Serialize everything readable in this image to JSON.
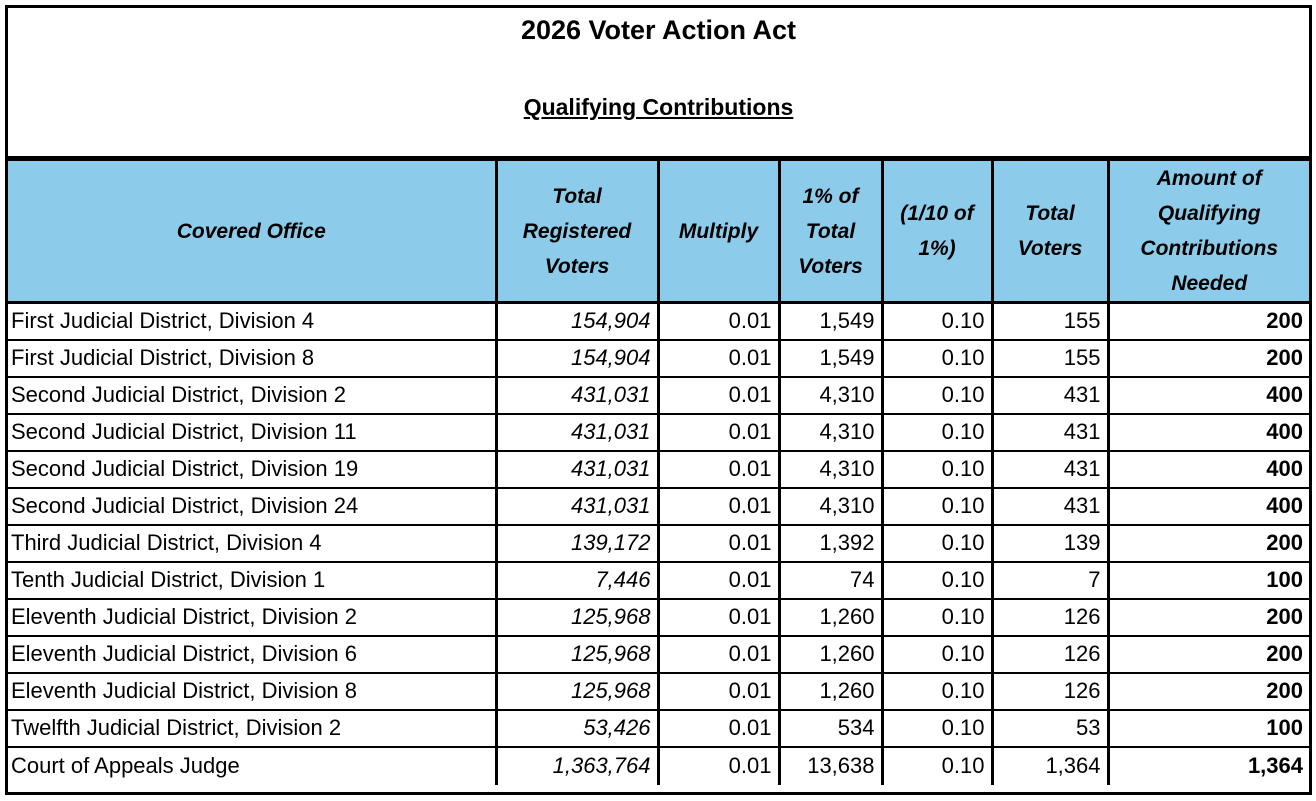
{
  "title": "2026 Voter Action Act",
  "subtitle": "Qualifying Contributions",
  "columns": [
    "Covered Office",
    "Total Registered Voters",
    "Multiply",
    "1% of Total Voters",
    "(1/10 of 1%)",
    "Total Voters",
    "Amount of Qualifying Contributions Needed"
  ],
  "rows": [
    {
      "office": "First Judicial District, Division 4",
      "registered": "154,904",
      "multiply": "0.01",
      "one_percent": "1,549",
      "tenth": "0.10",
      "total": "155",
      "needed": "200"
    },
    {
      "office": "First Judicial District, Division 8",
      "registered": "154,904",
      "multiply": "0.01",
      "one_percent": "1,549",
      "tenth": "0.10",
      "total": "155",
      "needed": "200"
    },
    {
      "office": "Second Judicial District, Division 2",
      "registered": "431,031",
      "multiply": "0.01",
      "one_percent": "4,310",
      "tenth": "0.10",
      "total": "431",
      "needed": "400"
    },
    {
      "office": "Second Judicial District, Division 11",
      "registered": "431,031",
      "multiply": "0.01",
      "one_percent": "4,310",
      "tenth": "0.10",
      "total": "431",
      "needed": "400"
    },
    {
      "office": "Second Judicial District, Division 19",
      "registered": "431,031",
      "multiply": "0.01",
      "one_percent": "4,310",
      "tenth": "0.10",
      "total": "431",
      "needed": "400"
    },
    {
      "office": "Second Judicial District, Division 24",
      "registered": "431,031",
      "multiply": "0.01",
      "one_percent": "4,310",
      "tenth": "0.10",
      "total": "431",
      "needed": "400"
    },
    {
      "office": "Third Judicial District, Division 4",
      "registered": "139,172",
      "multiply": "0.01",
      "one_percent": "1,392",
      "tenth": "0.10",
      "total": "139",
      "needed": "200"
    },
    {
      "office": "Tenth Judicial District, Division 1",
      "registered": "7,446",
      "multiply": "0.01",
      "one_percent": "74",
      "tenth": "0.10",
      "total": "7",
      "needed": "100"
    },
    {
      "office": "Eleventh Judicial District, Division 2",
      "registered": "125,968",
      "multiply": "0.01",
      "one_percent": "1,260",
      "tenth": "0.10",
      "total": "126",
      "needed": "200"
    },
    {
      "office": "Eleventh Judicial District, Division 6",
      "registered": "125,968",
      "multiply": "0.01",
      "one_percent": "1,260",
      "tenth": "0.10",
      "total": "126",
      "needed": "200"
    },
    {
      "office": "Eleventh Judicial District, Division 8",
      "registered": "125,968",
      "multiply": "0.01",
      "one_percent": "1,260",
      "tenth": "0.10",
      "total": "126",
      "needed": "200"
    },
    {
      "office": "Twelfth Judicial District, Division 2",
      "registered": "53,426",
      "multiply": "0.01",
      "one_percent": "534",
      "tenth": "0.10",
      "total": "53",
      "needed": "100"
    },
    {
      "office": "Court of Appeals Judge",
      "registered": "1,363,764",
      "multiply": "0.01",
      "one_percent": "13,638",
      "tenth": "0.10",
      "total": "1,364",
      "needed": "1,364"
    }
  ],
  "colors": {
    "header_background": "#8ccbe9",
    "border": "#000000"
  }
}
